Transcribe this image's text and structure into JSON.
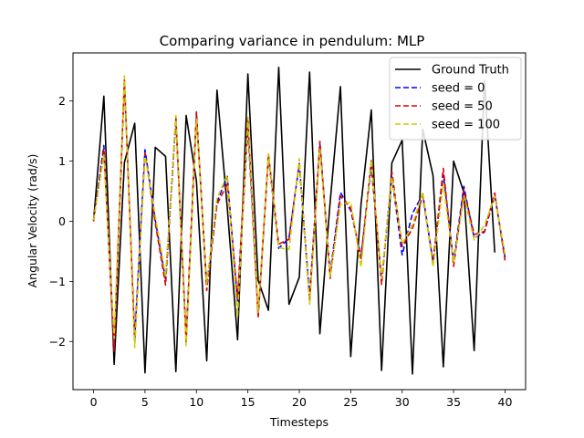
{
  "chart_data": {
    "type": "line",
    "title": "Comparing variance in pendulum: MLP",
    "xlabel": "Timesteps",
    "ylabel": "Angular Velocity (rad/s)",
    "xlim": [
      -2,
      42
    ],
    "ylim": [
      -2.8,
      2.8
    ],
    "xticks": [
      0,
      5,
      10,
      15,
      20,
      25,
      30,
      35,
      40
    ],
    "yticks": [
      -2,
      -1,
      0,
      1,
      2
    ],
    "grid": false,
    "legend_position": "top-right",
    "x": [
      0,
      1,
      2,
      3,
      4,
      5,
      6,
      7,
      8,
      9,
      10,
      11,
      12,
      13,
      14,
      15,
      16,
      17,
      18,
      19,
      20,
      21,
      22,
      23,
      24,
      25,
      26,
      27,
      28,
      29,
      30,
      31,
      32,
      33,
      34,
      35,
      36,
      37,
      38,
      39,
      40
    ],
    "series": [
      {
        "name": "Ground Truth",
        "color": "#000000",
        "style": "solid",
        "values": [
          0.0,
          2.08,
          -2.38,
          0.98,
          1.63,
          -2.52,
          1.23,
          1.08,
          -2.5,
          1.76,
          0.67,
          -2.32,
          2.18,
          0.22,
          -1.97,
          2.45,
          -0.98,
          -1.48,
          2.56,
          -1.38,
          -0.93,
          2.48,
          -1.87,
          0.32,
          2.24,
          -2.25,
          0.28,
          1.85,
          -2.48,
          0.97,
          1.35,
          -2.54,
          1.53,
          0.76,
          -2.42,
          1.0,
          0.48,
          -2.15,
          2.35,
          -0.52,
          null
        ]
      },
      {
        "name": "seed = 0",
        "color": "#0000ff",
        "style": "dashed",
        "values": [
          0.02,
          1.26,
          -2.12,
          2.36,
          -1.95,
          1.19,
          0.02,
          -0.97,
          1.7,
          -1.95,
          1.78,
          -1.06,
          0.32,
          0.75,
          -1.35,
          1.58,
          -1.57,
          1.08,
          -0.45,
          -0.28,
          0.96,
          -1.25,
          1.29,
          -0.88,
          0.48,
          0.18,
          -0.58,
          0.92,
          -0.98,
          0.75,
          -0.56,
          0.13,
          0.45,
          -0.67,
          0.78,
          -0.67,
          0.58,
          -0.28,
          -0.18,
          0.43,
          -0.6
        ]
      },
      {
        "name": "seed = 50",
        "color": "#dd0000",
        "style": "dashed",
        "values": [
          0.0,
          1.2,
          -2.16,
          2.35,
          -1.99,
          1.14,
          -0.03,
          -1.06,
          1.74,
          -2.0,
          1.82,
          -1.15,
          0.28,
          0.62,
          -1.28,
          1.72,
          -1.6,
          1.12,
          -0.38,
          -0.3,
          0.98,
          -1.34,
          1.33,
          -0.95,
          0.42,
          0.22,
          -0.62,
          1.01,
          -1.05,
          0.82,
          -0.42,
          -0.12,
          0.42,
          -0.7,
          0.88,
          -0.75,
          0.52,
          -0.22,
          -0.17,
          0.47,
          -0.65
        ]
      },
      {
        "name": "seed = 100",
        "color": "#cccc00",
        "style": "dashed",
        "values": [
          0.02,
          1.1,
          -1.95,
          2.42,
          -2.1,
          1.08,
          0.09,
          -0.92,
          1.76,
          -2.07,
          1.7,
          -1.04,
          0.38,
          0.77,
          -1.58,
          1.73,
          -1.52,
          1.12,
          -0.44,
          -0.47,
          1.04,
          -1.38,
          1.2,
          -0.92,
          0.28,
          0.32,
          -0.76,
          1.02,
          -0.95,
          0.73,
          -0.38,
          -0.06,
          0.48,
          -0.76,
          0.63,
          -0.69,
          0.42,
          -0.31,
          -0.07,
          0.41,
          -0.55
        ]
      }
    ]
  }
}
